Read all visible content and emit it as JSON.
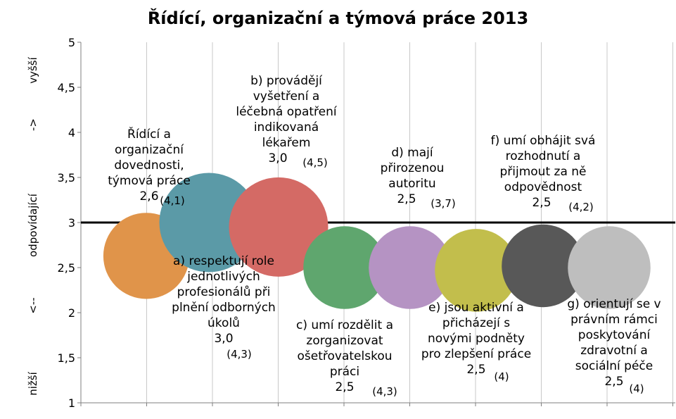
{
  "chart_data": {
    "type": "bubble",
    "title": "Řídící, organizační a týmová práce 2013",
    "ylim": [
      1,
      5
    ],
    "yticks": [
      "1",
      "1,5",
      "2",
      "2,5",
      "3",
      "3,5",
      "4",
      "4,5",
      "5"
    ],
    "y_axis_annotations": {
      "low": "nižší",
      "down_arrow": "<--",
      "mid": "odpovídající",
      "up_arrow": "->",
      "high": "vyšší"
    },
    "reference_line": 3,
    "grid": "vertical",
    "bubbles": [
      {
        "y": 2.63,
        "size": 2.6,
        "color": "#E0944A",
        "label_lines": [
          "Řídící a",
          "organizační",
          "dovednosti,",
          "týmová práce"
        ],
        "value": "2,6",
        "note": "(4,1)"
      },
      {
        "y": 3.0,
        "size": 3.0,
        "color": "#5B9AA7",
        "label_lines": [
          "a) respektují role",
          "jednotlivých",
          "profesionálů při",
          "plnění odborných",
          "úkolů"
        ],
        "value": "3,0",
        "note": "(4,3)"
      },
      {
        "y": 2.95,
        "size": 3.0,
        "color": "#D46A65",
        "label_lines": [
          "b) provádějí",
          "vyšetření a",
          "léčebná opatření",
          "indikovaná",
          "lékařem"
        ],
        "value": "3,0",
        "note": "(4,5)"
      },
      {
        "y": 2.5,
        "size": 2.5,
        "color": "#5FA66E",
        "label_lines": [
          "c) umí rozdělit a",
          "zorganizovat",
          "ošetřovatelskou",
          "práci"
        ],
        "value": "2,5",
        "note": "(4,3)"
      },
      {
        "y": 2.5,
        "size": 2.5,
        "color": "#B593C3",
        "label_lines": [
          "d) mají",
          "přirozenou",
          "autoritu"
        ],
        "value": "2,5",
        "note": "(3,7)"
      },
      {
        "y": 2.47,
        "size": 2.5,
        "color": "#C2BE4C",
        "label_lines": [
          "e) jsou aktivní a",
          "přicházejí s",
          "novými podněty",
          "pro zlepšení práce"
        ],
        "value": "2,5",
        "note": "(4)"
      },
      {
        "y": 2.52,
        "size": 2.5,
        "color": "#585858",
        "label_lines": [
          "f) umí obhájit svá",
          "rozhodnutí a",
          "přijmout za ně",
          "odpovědnost"
        ],
        "value": "2,5",
        "note": "(4,2)"
      },
      {
        "y": 2.5,
        "size": 2.5,
        "color": "#BEBEBE",
        "label_lines": [
          "g) orientují se v",
          "právním rámci",
          "poskytování",
          "zdravotní a",
          "sociální péče"
        ],
        "value": "2,5",
        "note": "(4)"
      }
    ]
  }
}
